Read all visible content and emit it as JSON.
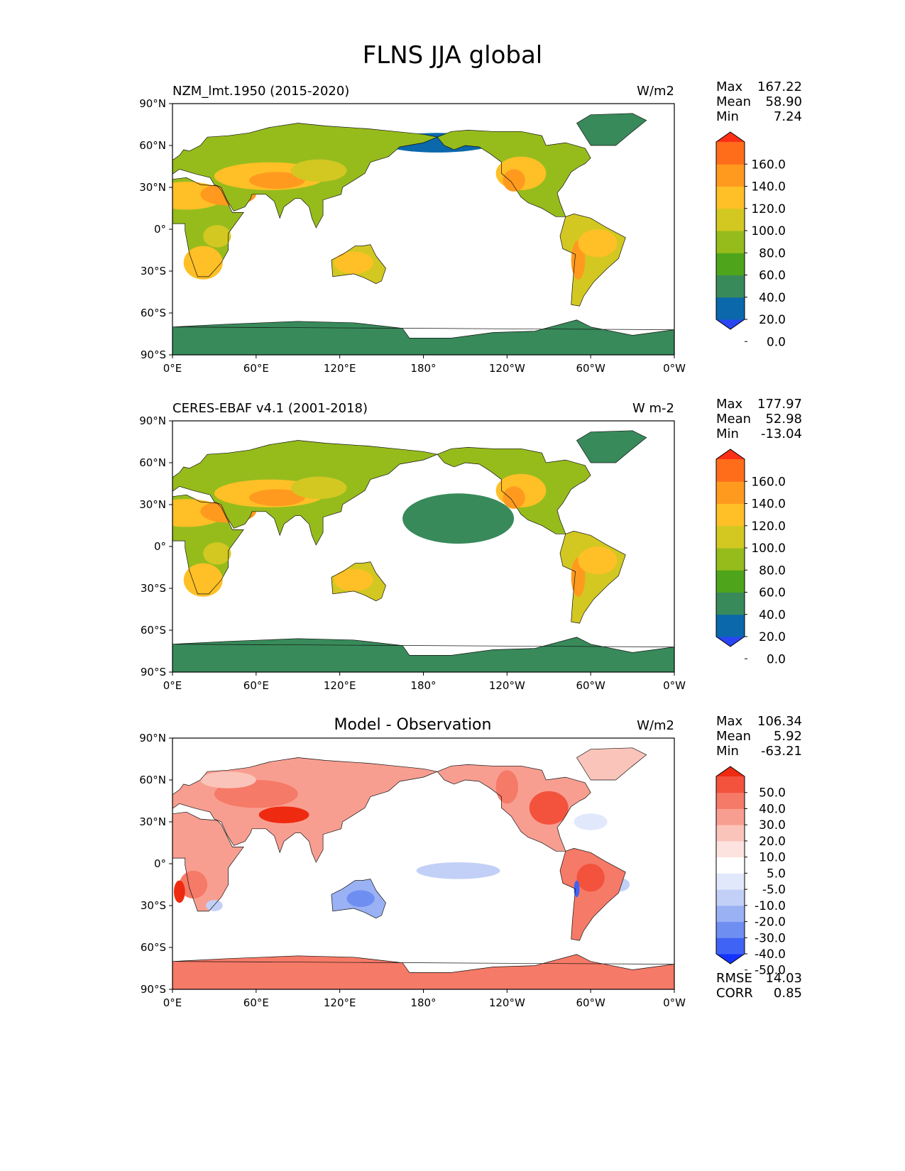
{
  "figure": {
    "title": "FLNS JJA global"
  },
  "axes": {
    "lat_ticks": [
      "90°N",
      "60°N",
      "30°N",
      "0°",
      "30°S",
      "60°S",
      "90°S"
    ],
    "lon_ticks": [
      "0°E",
      "60°E",
      "120°E",
      "180°",
      "120°W",
      "60°W",
      "0°W"
    ]
  },
  "panels": [
    {
      "title_left": "NZM_lmt.1950 (2015-2020)",
      "title_center": "",
      "units": "W/m2",
      "stats": [
        {
          "label": "Max",
          "value": "167.22"
        },
        {
          "label": "Mean",
          "value": "58.90"
        },
        {
          "label": "Min",
          "value": "7.24"
        }
      ],
      "colorbar": {
        "labels": [
          "160.0",
          "140.0",
          "120.0",
          "100.0",
          "80.0",
          "60.0",
          "40.0",
          "20.0",
          "0.0"
        ],
        "colors": [
          "#2a45f2",
          "#0a68ab",
          "#388a5a",
          "#4ea51b",
          "#96bc1c",
          "#d2c821",
          "#ffbf26",
          "#ff9a1f",
          "#ff6d1b",
          "#ff2f16"
        ]
      }
    },
    {
      "title_left": "CERES-EBAF v4.1 (2001-2018)",
      "title_center": "",
      "units": "W m-2",
      "stats": [
        {
          "label": "Max",
          "value": "177.97"
        },
        {
          "label": "Mean",
          "value": "52.98"
        },
        {
          "label": "Min",
          "value": "-13.04"
        }
      ],
      "colorbar": {
        "labels": [
          "160.0",
          "140.0",
          "120.0",
          "100.0",
          "80.0",
          "60.0",
          "40.0",
          "20.0",
          "0.0"
        ],
        "colors": [
          "#2a45f2",
          "#0a68ab",
          "#388a5a",
          "#4ea51b",
          "#96bc1c",
          "#d2c821",
          "#ffbf26",
          "#ff9a1f",
          "#ff6d1b",
          "#ff2f16"
        ]
      }
    },
    {
      "title_left": "",
      "title_center": "Model - Observation",
      "units": "W/m2",
      "stats": [
        {
          "label": "Max",
          "value": "106.34"
        },
        {
          "label": "Mean",
          "value": "5.92"
        },
        {
          "label": "Min",
          "value": "-63.21"
        }
      ],
      "extra_stats": [
        {
          "label": "RMSE",
          "value": "14.03"
        },
        {
          "label": "CORR",
          "value": "0.85"
        }
      ],
      "colorbar": {
        "labels": [
          "50.0",
          "40.0",
          "30.0",
          "20.0",
          "10.0",
          "5.0",
          "-5.0",
          "-10.0",
          "-20.0",
          "-30.0",
          "-40.0",
          "-50.0"
        ],
        "colors": [
          "#1433ff",
          "#3f63f5",
          "#6f8ef2",
          "#9ab1f4",
          "#c2d0f7",
          "#e2e8fb",
          "#ffffff",
          "#fde3df",
          "#fbc4bb",
          "#f89e91",
          "#f57a67",
          "#f3523d",
          "#ee2a10"
        ]
      }
    }
  ]
}
